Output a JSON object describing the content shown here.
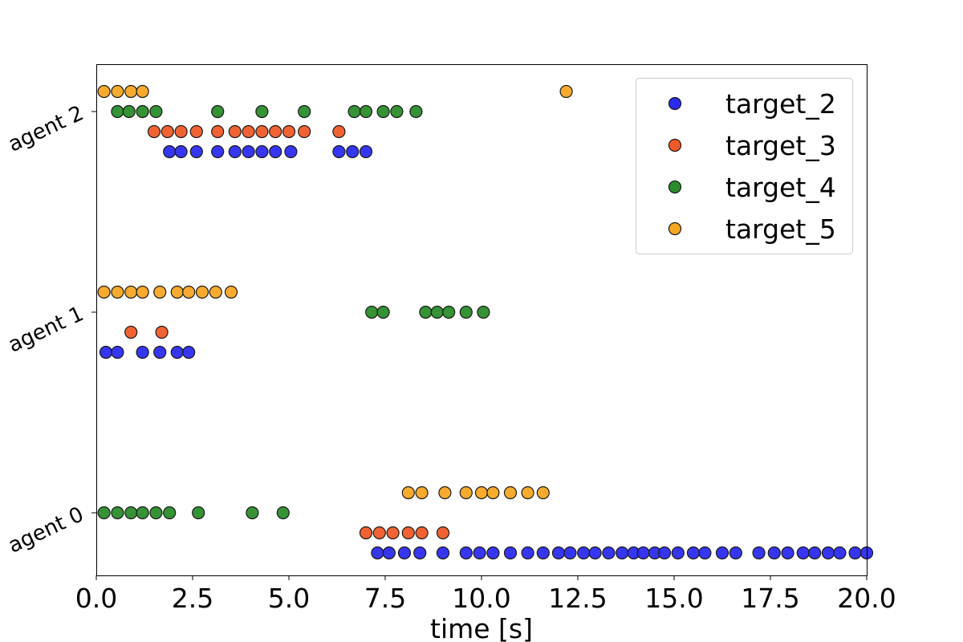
{
  "chart_data": {
    "type": "scatter",
    "title": "",
    "xlabel": "time [s]",
    "ylabel": "",
    "xlim": [
      0,
      20
    ],
    "xticks": [
      "0.0",
      "2.5",
      "5.0",
      "7.5",
      "10.0",
      "12.5",
      "15.0",
      "17.5",
      "20.0"
    ],
    "xtick_values": [
      0,
      2.5,
      5,
      7.5,
      10,
      12.5,
      15,
      17.5,
      20
    ],
    "yticks": [
      "agent 0",
      "agent 1",
      "agent 2"
    ],
    "grid": false,
    "legend_position": "top-right",
    "series": [
      {
        "name": "target_2",
        "color": "#2b2bf0",
        "points": {
          "agent 0": [
            7.3,
            7.6,
            8.0,
            8.4,
            9.0,
            9.6,
            9.95,
            10.3,
            10.75,
            11.2,
            11.6,
            12.0,
            12.3,
            12.65,
            12.95,
            13.3,
            13.65,
            13.95,
            14.2,
            14.5,
            14.75,
            15.1,
            15.5,
            15.8,
            16.25,
            16.6,
            17.2,
            17.6,
            17.95,
            18.35,
            18.65,
            19.0,
            19.3,
            19.7,
            20.0
          ],
          "agent 1": [
            0.25,
            0.55,
            1.2,
            1.65,
            2.1,
            2.4
          ],
          "agent 2": [
            1.9,
            2.2,
            2.6,
            3.15,
            3.6,
            3.95,
            4.3,
            4.65,
            5.05,
            6.3,
            6.65,
            7.0
          ]
        }
      },
      {
        "name": "target_3",
        "color": "#f05a28",
        "points": {
          "agent 0": [
            7.0,
            7.35,
            7.7,
            8.1,
            8.45,
            9.0
          ],
          "agent 1": [
            0.9,
            1.7
          ],
          "agent 2": [
            1.5,
            1.85,
            2.2,
            2.6,
            3.15,
            3.6,
            3.95,
            4.3,
            4.65,
            5.0,
            5.4,
            6.3
          ]
        }
      },
      {
        "name": "target_4",
        "color": "#2a8c2a",
        "points": {
          "agent 0": [
            0.2,
            0.55,
            0.9,
            1.2,
            1.55,
            1.9,
            2.65,
            4.05,
            4.85
          ],
          "agent 1": [
            7.15,
            7.45,
            8.55,
            8.85,
            9.15,
            9.6,
            10.05
          ],
          "agent 2": [
            0.55,
            0.85,
            1.2,
            1.55,
            3.15,
            4.3,
            5.4,
            6.7,
            7.0,
            7.45,
            7.8,
            8.3
          ]
        }
      },
      {
        "name": "target_5",
        "color": "#f5a623",
        "points": {
          "agent 0": [
            8.1,
            8.45,
            9.05,
            9.6,
            10.0,
            10.3,
            10.75,
            11.2,
            11.6
          ],
          "agent 1": [
            0.2,
            0.55,
            0.9,
            1.2,
            1.65,
            2.1,
            2.4,
            2.75,
            3.1,
            3.5
          ],
          "agent 2": [
            0.2,
            0.55,
            0.9,
            1.2,
            12.2
          ]
        }
      }
    ]
  }
}
